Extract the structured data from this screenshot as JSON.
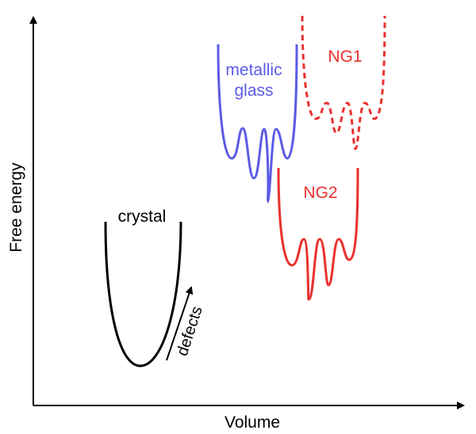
{
  "axes": {
    "x_label": "Volume",
    "y_label": "Free energy"
  },
  "curves": {
    "crystal": {
      "label": "crystal",
      "color": "#000000",
      "line": "solid"
    },
    "metallic_glass": {
      "label_line1": "metallic",
      "label_line2": "glass",
      "color": "#5b5be6",
      "line": "solid"
    },
    "ng1": {
      "label": "NG1",
      "color": "#e8312f",
      "line": "dashed"
    },
    "ng2": {
      "label": "NG2",
      "color": "#e8312f",
      "line": "solid"
    }
  },
  "annotations": {
    "defects": "defects"
  },
  "colors": {
    "axis": "#000000",
    "blue": "#5b5be6",
    "red": "#e8312f"
  }
}
